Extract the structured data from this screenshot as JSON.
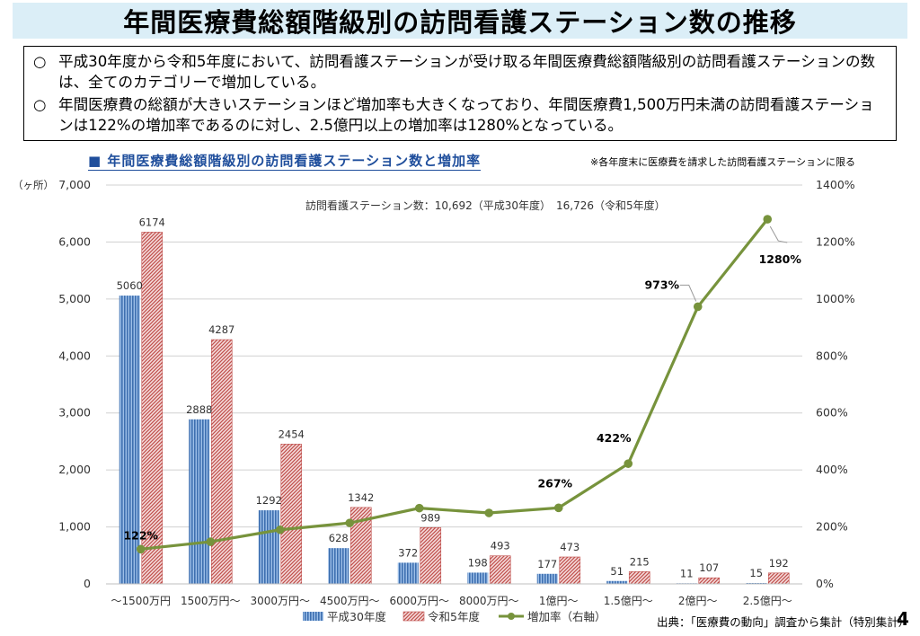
{
  "title": "年間医療費総額階級別の訪問看護ステーション数の推移",
  "summary": {
    "bullet_symbol": "○",
    "bullets": [
      "平成30年度から令和5年度において、訪問看護ステーションが受け取る年間医療費総額階級別の訪問看護ステーションの数は、全てのカテゴリーで増加している。",
      "年間医療費の総額が大きいステーションほど増加率も大きくなっており、年間医療費1,500万円未満の訪問看護ステーションは122%の増加率であるのに対し、2.5億円以上の増加率は1280%となっている。"
    ]
  },
  "subtitle": "■ 年間医療費総額階級別の訪問看護ステーション数と増加率",
  "note": "※各年度末に医療費を請求した訪問看護ステーションに限る",
  "source": "出典：「医療費の動向」調査から集計（特別集計）",
  "page_number": "4",
  "chart_data": {
    "type": "bar",
    "categories": [
      "～1500万円",
      "1500万円～",
      "3000万円～",
      "4500万円～",
      "6000万円～",
      "8000万円～",
      "1億円～",
      "1.5億円～",
      "2億円～",
      "2.5億円～"
    ],
    "series": [
      {
        "name": "平成30年度",
        "type": "bar",
        "axis": "left",
        "color": "#4a7ebb",
        "values": [
          5060,
          2888,
          1292,
          628,
          372,
          198,
          177,
          51,
          11,
          15
        ],
        "labels": [
          "5060",
          "2888",
          "1292",
          "628",
          "372",
          "198",
          "177",
          "51",
          "11",
          "15"
        ]
      },
      {
        "name": "令和5年度",
        "type": "bar",
        "axis": "left",
        "color": "#c0504d",
        "values": [
          6174,
          4287,
          2454,
          1342,
          989,
          493,
          473,
          215,
          107,
          192
        ],
        "labels": [
          "6174",
          "4287",
          "2454",
          "1342",
          "989",
          "493",
          "473",
          "215",
          "107",
          "192"
        ]
      },
      {
        "name": "増加率（右軸）",
        "type": "line",
        "axis": "right",
        "color": "#77933c",
        "values": [
          122,
          148,
          190,
          214,
          266,
          249,
          267,
          422,
          973,
          1280
        ]
      }
    ],
    "line_labels": [
      {
        "index": 0,
        "text": "122%"
      },
      {
        "index": 6,
        "text": "267%"
      },
      {
        "index": 7,
        "text": "422%"
      },
      {
        "index": 8,
        "text": "973%"
      },
      {
        "index": 9,
        "text": "1280%"
      }
    ],
    "annotation": "訪問看護ステーション数：10,692（平成30年度）　16,726（令和5年度）",
    "ylabel": "（ヶ所）",
    "ylim": [
      0,
      7000
    ],
    "yticks": [
      0,
      1000,
      2000,
      3000,
      4000,
      5000,
      6000,
      7000
    ],
    "ytick_labels": [
      "0",
      "1,000",
      "2,000",
      "3,000",
      "4,000",
      "5,000",
      "6,000",
      "7,000"
    ],
    "y2lim": [
      0,
      1400
    ],
    "y2ticks": [
      0,
      200,
      400,
      600,
      800,
      1000,
      1200,
      1400
    ],
    "y2tick_labels": [
      "0%",
      "200%",
      "400%",
      "600%",
      "800%",
      "1000%",
      "1200%",
      "1400%"
    ],
    "grid": true,
    "legend": "bottom"
  }
}
